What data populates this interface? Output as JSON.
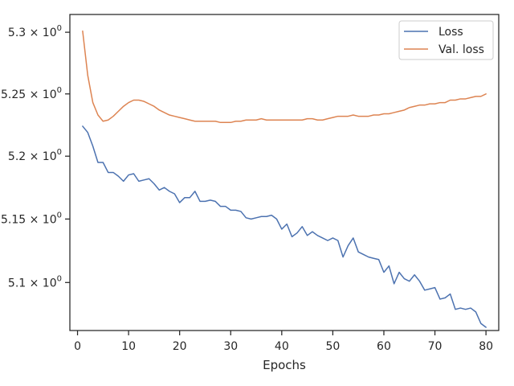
{
  "chart_data": {
    "type": "line",
    "title": "",
    "xlabel": "Epochs",
    "ylabel": "",
    "xlim": [
      -1.5,
      82.5
    ],
    "ylim": [
      5.0625,
      5.3145
    ],
    "log_y": true,
    "grid": false,
    "legend_position": "top-right",
    "x_ticks": [
      {
        "value": 0,
        "label": "0"
      },
      {
        "value": 10,
        "label": "10"
      },
      {
        "value": 20,
        "label": "20"
      },
      {
        "value": 30,
        "label": "30"
      },
      {
        "value": 40,
        "label": "40"
      },
      {
        "value": 50,
        "label": "50"
      },
      {
        "value": 60,
        "label": "60"
      },
      {
        "value": 70,
        "label": "70"
      },
      {
        "value": 80,
        "label": "80"
      }
    ],
    "y_ticks": [
      {
        "value": 5.1,
        "label": "5.1 × 10",
        "exp": "0"
      },
      {
        "value": 5.15,
        "label": "5.15 × 10",
        "exp": "0"
      },
      {
        "value": 5.2,
        "label": "5.2 × 10",
        "exp": "0"
      },
      {
        "value": 5.25,
        "label": "5.25 × 10",
        "exp": "0"
      },
      {
        "value": 5.3,
        "label": "5.3 × 10",
        "exp": "0"
      }
    ],
    "x": [
      1,
      2,
      3,
      4,
      5,
      6,
      7,
      8,
      9,
      10,
      11,
      12,
      13,
      14,
      15,
      16,
      17,
      18,
      19,
      20,
      21,
      22,
      23,
      24,
      25,
      26,
      27,
      28,
      29,
      30,
      31,
      32,
      33,
      34,
      35,
      36,
      37,
      38,
      39,
      40,
      41,
      42,
      43,
      44,
      45,
      46,
      47,
      48,
      49,
      50,
      51,
      52,
      53,
      54,
      55,
      56,
      57,
      58,
      59,
      60,
      61,
      62,
      63,
      64,
      65,
      66,
      67,
      68,
      69,
      70,
      71,
      72,
      73,
      74,
      75,
      76,
      77,
      78,
      79,
      80
    ],
    "series": [
      {
        "name": "Loss",
        "color": "#4c72b0",
        "values": [
          5.224,
          5.219,
          5.208,
          5.195,
          5.195,
          5.187,
          5.187,
          5.184,
          5.18,
          5.185,
          5.186,
          5.18,
          5.181,
          5.182,
          5.178,
          5.173,
          5.175,
          5.172,
          5.17,
          5.163,
          5.167,
          5.167,
          5.172,
          5.164,
          5.164,
          5.165,
          5.164,
          5.16,
          5.16,
          5.157,
          5.157,
          5.156,
          5.151,
          5.15,
          5.151,
          5.152,
          5.152,
          5.153,
          5.15,
          5.142,
          5.146,
          5.136,
          5.139,
          5.144,
          5.137,
          5.14,
          5.137,
          5.135,
          5.133,
          5.135,
          5.133,
          5.12,
          5.129,
          5.135,
          5.124,
          5.122,
          5.12,
          5.119,
          5.118,
          5.108,
          5.113,
          5.099,
          5.108,
          5.103,
          5.101,
          5.106,
          5.101,
          5.094,
          5.095,
          5.096,
          5.087,
          5.088,
          5.091,
          5.079,
          5.08,
          5.079,
          5.08,
          5.077,
          5.068,
          5.065
        ]
      },
      {
        "name": "Val. loss",
        "color": "#dd8452",
        "values": [
          5.301,
          5.265,
          5.243,
          5.233,
          5.228,
          5.229,
          5.232,
          5.236,
          5.24,
          5.243,
          5.245,
          5.245,
          5.244,
          5.242,
          5.24,
          5.237,
          5.235,
          5.233,
          5.232,
          5.231,
          5.23,
          5.229,
          5.228,
          5.228,
          5.228,
          5.228,
          5.228,
          5.227,
          5.227,
          5.227,
          5.228,
          5.228,
          5.229,
          5.229,
          5.229,
          5.23,
          5.229,
          5.229,
          5.229,
          5.229,
          5.229,
          5.229,
          5.229,
          5.229,
          5.23,
          5.23,
          5.229,
          5.229,
          5.23,
          5.231,
          5.232,
          5.232,
          5.232,
          5.233,
          5.232,
          5.232,
          5.232,
          5.233,
          5.233,
          5.234,
          5.234,
          5.235,
          5.236,
          5.237,
          5.239,
          5.24,
          5.241,
          5.241,
          5.242,
          5.242,
          5.243,
          5.243,
          5.245,
          5.245,
          5.246,
          5.246,
          5.247,
          5.248,
          5.248,
          5.25
        ]
      }
    ]
  }
}
